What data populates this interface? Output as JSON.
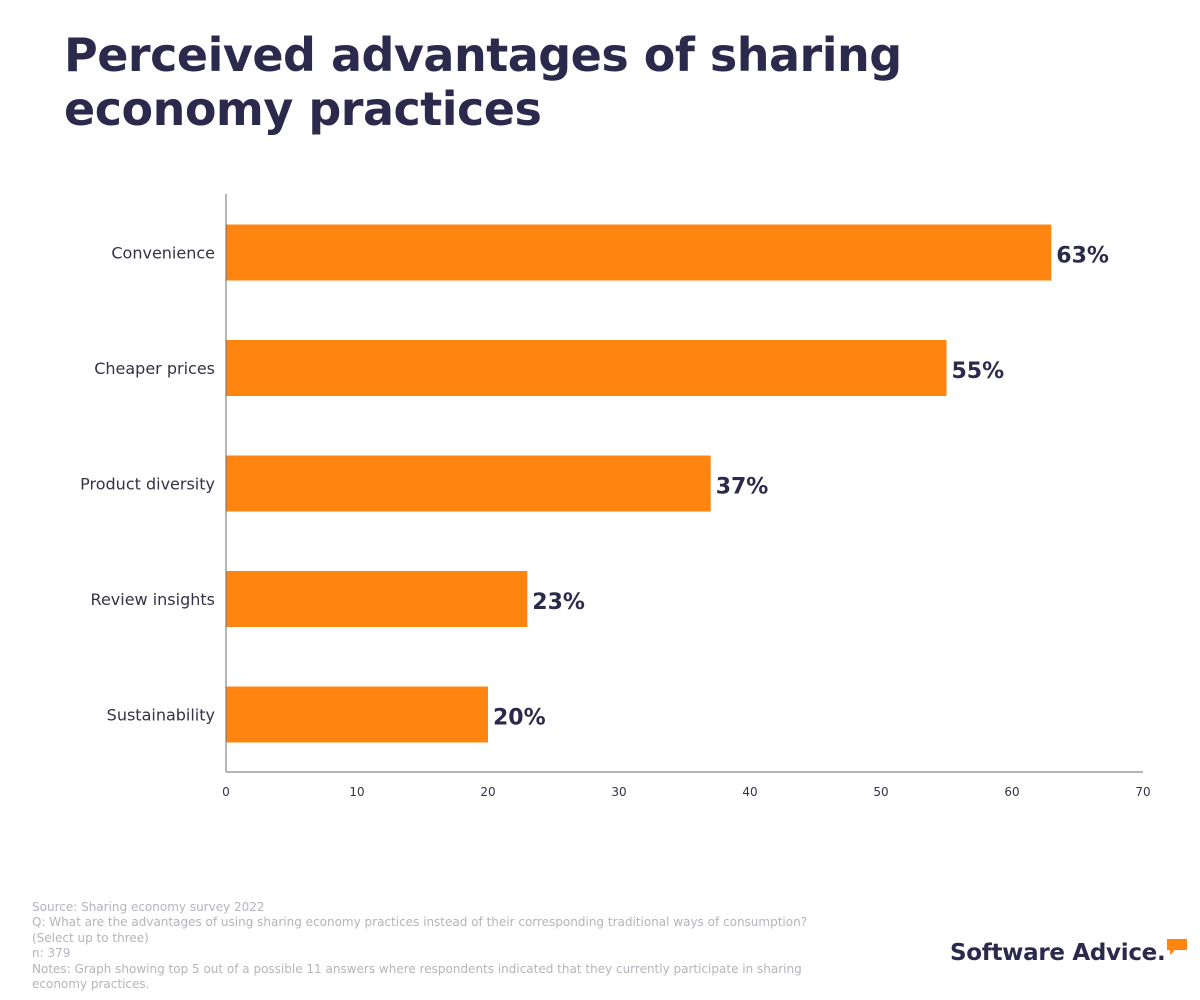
{
  "title": "Perceived advantages of sharing economy practices",
  "chart_data": {
    "type": "bar",
    "orientation": "horizontal",
    "title": "Perceived advantages of sharing economy practices",
    "categories": [
      "Convenience",
      "Cheaper prices",
      "Product diversity",
      "Review insights",
      "Sustainability"
    ],
    "values": [
      63,
      55,
      37,
      23,
      20
    ],
    "value_labels": [
      "63%",
      "55%",
      "37%",
      "23%",
      "20%"
    ],
    "xlim": [
      0,
      70
    ],
    "xticks": [
      0,
      10,
      20,
      30,
      40,
      50,
      60,
      70
    ],
    "xlabel": "",
    "ylabel": "",
    "grid": false,
    "bar_color": "#ff8410"
  },
  "notes": {
    "source": "Source: Sharing economy survey 2022",
    "question": "Q: What are the advantages of using sharing economy practices instead of their corresponding traditional ways of consumption?",
    "question_note": "(Select up to three)",
    "n": "n: 379",
    "notes_text": "Notes: Graph showing top 5 out of a possible 11 answers where respondents indicated that they currently participate in sharing economy practices."
  },
  "logo": {
    "text": "Software Advice.",
    "accent_color": "#ff8410",
    "text_color": "#2b2a4c"
  }
}
